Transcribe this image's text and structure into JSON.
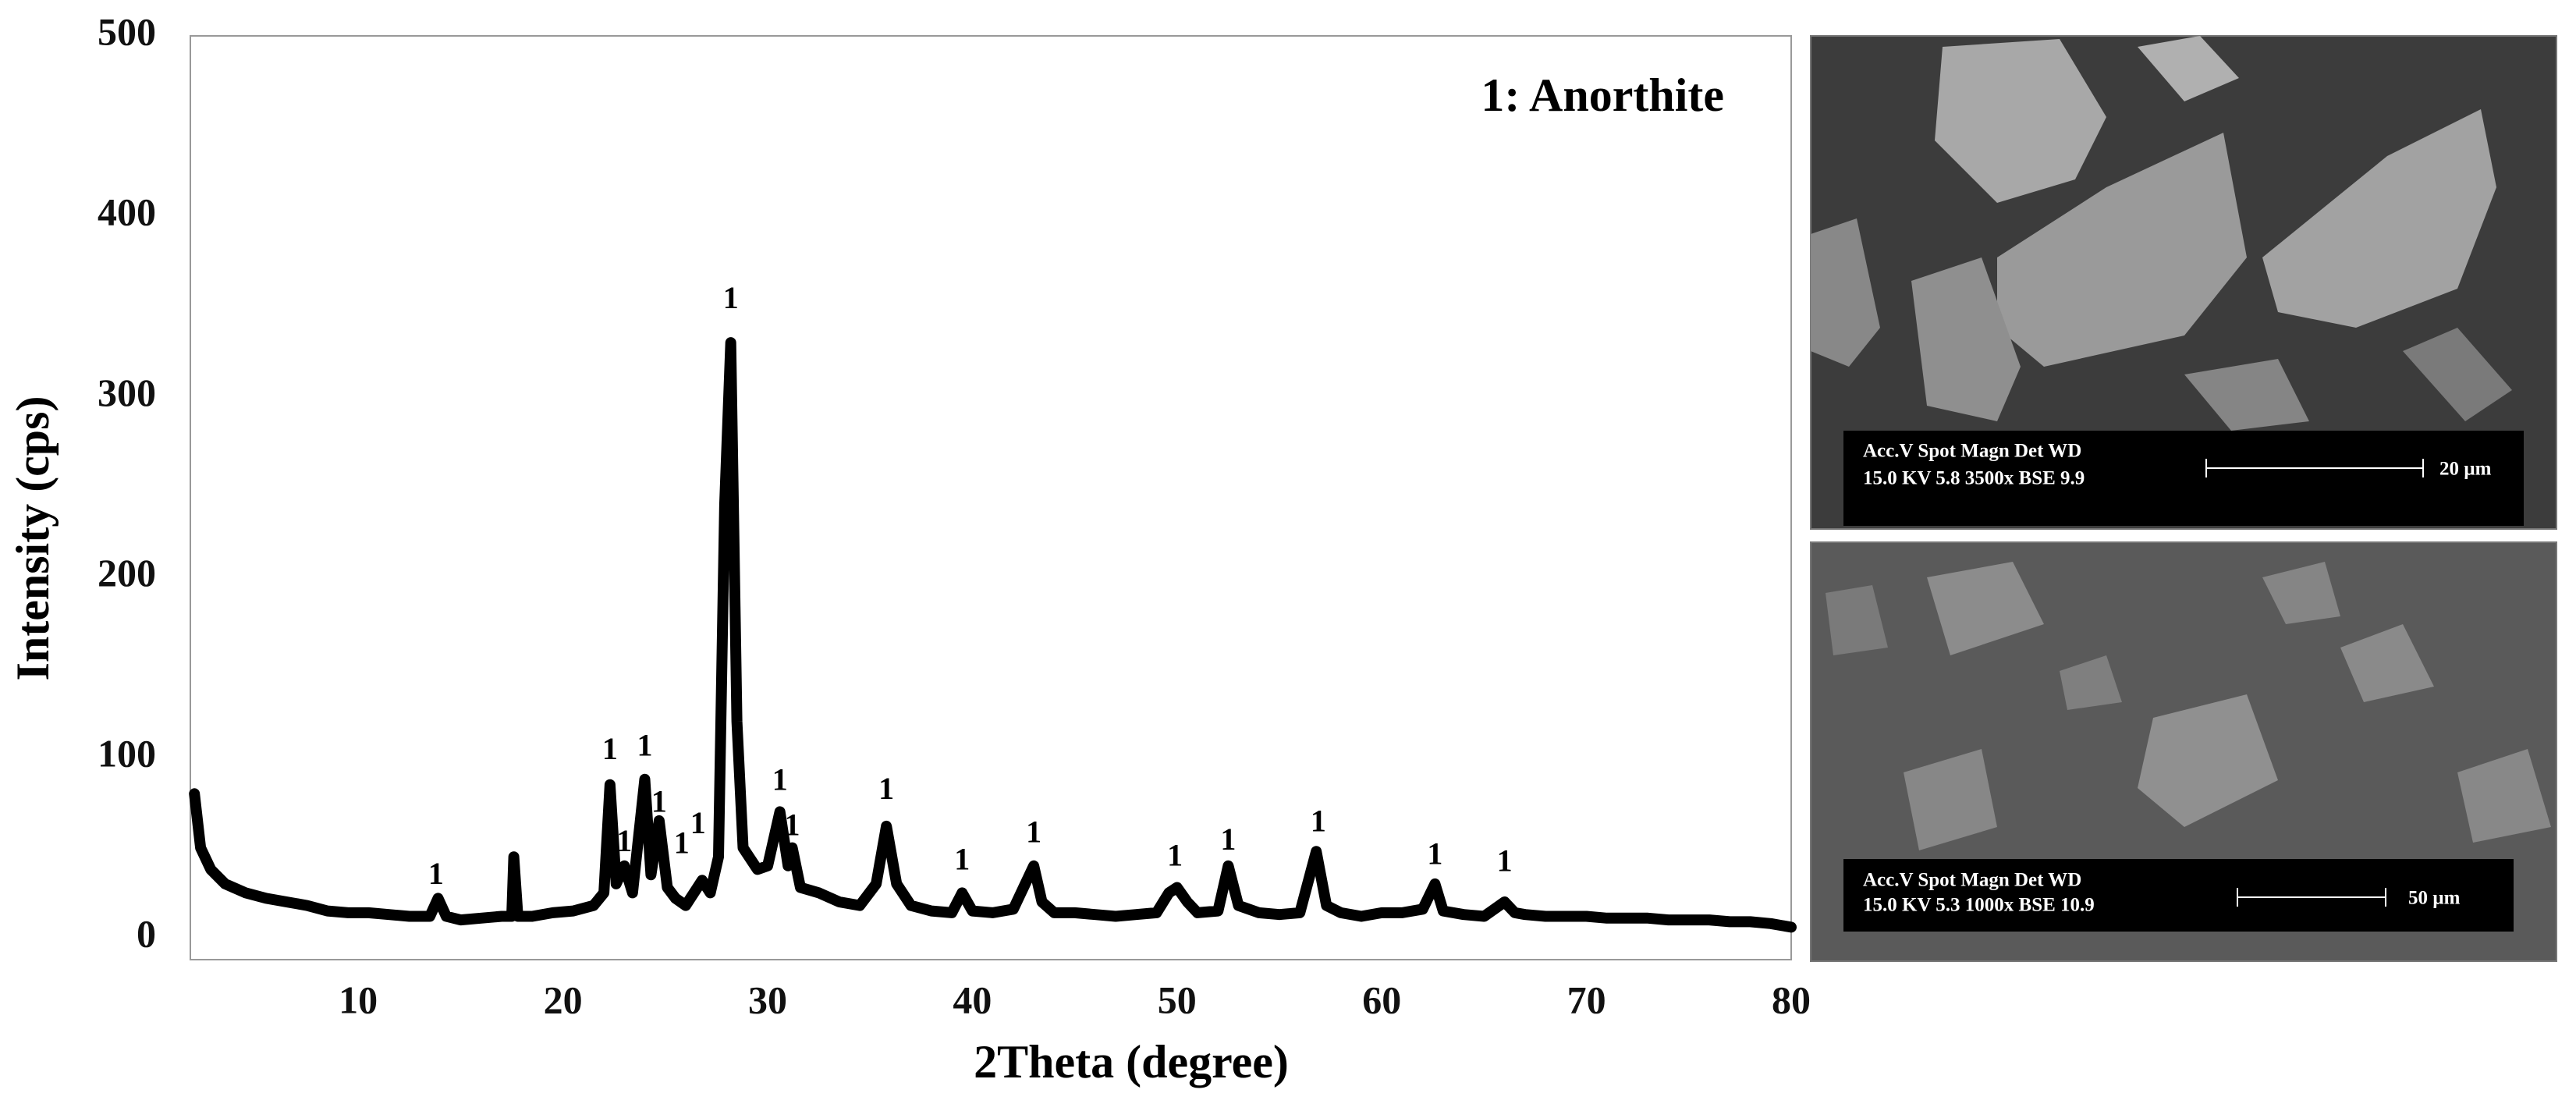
{
  "chart_data": {
    "type": "line",
    "color": "#000000",
    "annotation_title": "1: Anorthite",
    "xlabel": "2Theta (degree)",
    "ylabel": "Intensity (cps)",
    "xlim": [
      1.8,
      80
    ],
    "ylim": [
      -12,
      500
    ],
    "xticks": [
      10,
      20,
      30,
      40,
      50,
      60,
      70,
      80
    ],
    "yticks": [
      0,
      100,
      200,
      300,
      400,
      500
    ],
    "x": [
      2,
      2.3,
      2.8,
      3.5,
      4.5,
      5.5,
      6.5,
      7.5,
      8.5,
      9.5,
      10.5,
      11.5,
      12.5,
      13.5,
      13.9,
      14.3,
      15,
      16,
      17,
      17.5,
      17.6,
      17.8,
      18.5,
      19.5,
      20.5,
      21.5,
      22,
      22.3,
      22.6,
      23,
      23.4,
      24,
      24.3,
      24.7,
      25.1,
      25.5,
      26,
      26.4,
      26.8,
      27.2,
      27.6,
      27.9,
      28.2,
      28.5,
      28.8,
      29.5,
      30,
      30.6,
      31,
      31.2,
      31.6,
      32.5,
      33.5,
      34.5,
      35.3,
      35.8,
      36.3,
      37,
      38,
      39,
      39.5,
      40,
      41,
      42,
      42.5,
      43,
      43.4,
      44,
      45,
      46,
      47,
      48,
      49,
      49.6,
      50,
      50.5,
      51,
      52,
      52.5,
      53,
      54,
      55,
      56,
      56.8,
      57.3,
      58,
      59,
      60,
      61,
      62,
      62.6,
      63,
      64,
      65,
      66,
      66.5,
      67,
      68,
      69,
      70,
      71,
      72,
      73,
      74,
      75,
      76,
      77,
      78,
      79,
      80
    ],
    "values": [
      80,
      50,
      38,
      30,
      25,
      22,
      20,
      18,
      15,
      14,
      14,
      13,
      12,
      12,
      22,
      12,
      10,
      11,
      12,
      12,
      45,
      12,
      12,
      14,
      15,
      18,
      25,
      85,
      30,
      40,
      25,
      88,
      35,
      65,
      28,
      22,
      18,
      25,
      32,
      25,
      45,
      240,
      330,
      120,
      50,
      38,
      40,
      70,
      40,
      50,
      28,
      25,
      20,
      18,
      30,
      62,
      30,
      18,
      15,
      14,
      25,
      15,
      14,
      16,
      28,
      40,
      20,
      14,
      14,
      13,
      12,
      13,
      14,
      25,
      28,
      20,
      14,
      15,
      40,
      18,
      14,
      13,
      14,
      48,
      18,
      14,
      12,
      14,
      14,
      16,
      30,
      15,
      13,
      12,
      20,
      14,
      13,
      12,
      12,
      12,
      11,
      11,
      11,
      10,
      10,
      10,
      9,
      9,
      8,
      6
    ],
    "annotations": [
      {
        "text": "1",
        "x": 13.8,
        "y": 34
      },
      {
        "text": "1",
        "x": 22.3,
        "y": 103
      },
      {
        "text": "1",
        "x": 23,
        "y": 52
      },
      {
        "text": "1",
        "x": 24,
        "y": 105
      },
      {
        "text": "1",
        "x": 24.7,
        "y": 74
      },
      {
        "text": "1",
        "x": 25.8,
        "y": 51
      },
      {
        "text": "1",
        "x": 26.6,
        "y": 62
      },
      {
        "text": "1",
        "x": 28.2,
        "y": 353
      },
      {
        "text": "1",
        "x": 30.6,
        "y": 86
      },
      {
        "text": "1",
        "x": 31.2,
        "y": 61
      },
      {
        "text": "1",
        "x": 35.8,
        "y": 81
      },
      {
        "text": "1",
        "x": 39.5,
        "y": 42
      },
      {
        "text": "1",
        "x": 43,
        "y": 57
      },
      {
        "text": "1",
        "x": 49.9,
        "y": 44
      },
      {
        "text": "1",
        "x": 52.5,
        "y": 53
      },
      {
        "text": "1",
        "x": 56.9,
        "y": 63
      },
      {
        "text": "1",
        "x": 62.6,
        "y": 45
      },
      {
        "text": "1",
        "x": 66,
        "y": 41
      }
    ]
  },
  "sem_images": [
    {
      "info_header": "Acc.V  Spot Magn  Det  WD",
      "info_values": "15.0 KV 5.8   3500x  BSE  9.9",
      "scale_label": "20 µm"
    },
    {
      "info_header": "Acc.V Spot Magn  Det  WD",
      "info_values": "15.0 KV 5.3   1000x  BSE  10.9",
      "scale_label": "50 µm"
    }
  ]
}
